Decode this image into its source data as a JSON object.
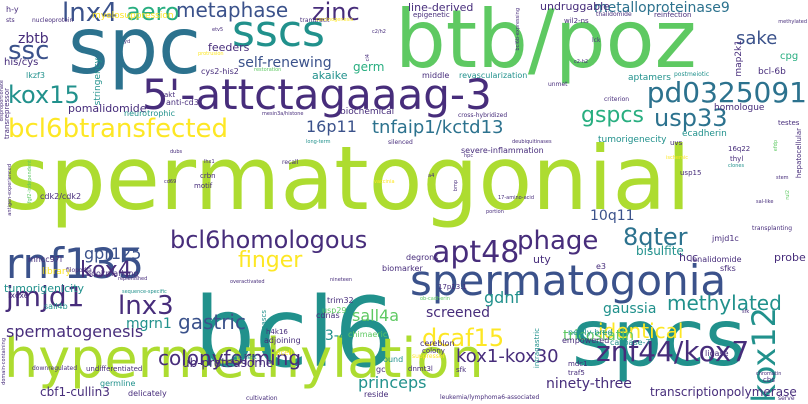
{
  "colors": {
    "purple": "#440154",
    "indigo": "#472d7b",
    "slate": "#3b528b",
    "blue": "#2c728e",
    "teal": "#21918c",
    "sea": "#28ae80",
    "green": "#5ec962",
    "lime": "#addc30",
    "yellow": "#fde725",
    "background": "#ffffff"
  },
  "words": [
    {
      "text": "spermatogonial",
      "color": "lime",
      "big": 96
    },
    {
      "text": "bcl6",
      "color": "teal",
      "big": 90
    },
    {
      "text": "btb/poz",
      "color": "green",
      "big": 76
    },
    {
      "text": "spc",
      "color": "blue",
      "big": 64
    },
    {
      "text": "spcs",
      "color": "teal",
      "big": 64
    },
    {
      "text": "hypermethylation",
      "color": "lime",
      "big": 50
    },
    {
      "text": "spermatogonia",
      "color": "slate",
      "big": 40
    },
    {
      "text": "5'-attctagaaag-3",
      "color": "indigo",
      "big": 40
    },
    {
      "text": "sscs",
      "color": "teal",
      "big": 40
    },
    {
      "text": "rnf135",
      "color": "slate",
      "big": 34
    },
    {
      "text": "kox12",
      "color": "teal",
      "big": 30
    },
    {
      "text": "apt48",
      "color": "indigo",
      "big": 28
    },
    {
      "text": "znf44/kox7",
      "color": "indigo",
      "big": 26
    },
    {
      "text": "pd0325091",
      "color": "blue",
      "big": 26
    },
    {
      "text": "jmjd1",
      "color": "indigo",
      "big": 26
    },
    {
      "text": "bcl6btransfected",
      "color": "yellow",
      "big": 24
    },
    {
      "text": "lnx3",
      "color": "indigo",
      "big": 24
    },
    {
      "text": "ssc",
      "color": "slate",
      "big": 24
    },
    {
      "text": "lnx4",
      "color": "slate",
      "big": 24
    },
    {
      "text": "zinc",
      "color": "indigo",
      "big": 24
    },
    {
      "text": "phage",
      "color": "indigo",
      "big": 22
    },
    {
      "text": "dcaf15",
      "color": "yellow",
      "big": 22
    },
    {
      "text": "usp33",
      "color": "blue",
      "big": 22
    },
    {
      "text": "bcl6homologous",
      "color": "indigo",
      "big": 22
    },
    {
      "text": "metaphase",
      "color": "slate",
      "big": 22
    },
    {
      "text": "aero",
      "color": "sea",
      "big": 22
    },
    {
      "text": "kox15",
      "color": "teal",
      "big": 22
    },
    {
      "text": "finger",
      "color": "yellow",
      "big": 20
    },
    {
      "text": "gspcs",
      "color": "sea",
      "big": 20
    },
    {
      "text": "8qter",
      "color": "blue",
      "big": 20
    },
    {
      "text": "kox4",
      "color": "indigo",
      "big": 20
    },
    {
      "text": "gastric",
      "color": "slate",
      "big": 18
    },
    {
      "text": "methylated",
      "color": "teal",
      "big": 18
    },
    {
      "text": "identical",
      "color": "yellow",
      "big": 18
    },
    {
      "text": "colonyforming",
      "color": "indigo",
      "big": 18
    },
    {
      "text": "tnfaip1/kctd13",
      "color": "blue",
      "big": 18
    },
    {
      "text": "kox1-kox30",
      "color": "indigo",
      "big": 16
    },
    {
      "text": "sake",
      "color": "slate",
      "big": 16
    },
    {
      "text": "gpr125",
      "color": "slate",
      "big": 16
    },
    {
      "text": "16p11",
      "color": "slate",
      "big": 14
    },
    {
      "text": "spermatogenesis",
      "color": "indigo",
      "big": 14
    },
    {
      "text": "gdnf",
      "color": "teal",
      "big": 14
    },
    {
      "text": "zbtb",
      "color": "indigo",
      "big": 14
    },
    {
      "text": "metalloproteinase9",
      "color": "blue",
      "big": 14
    },
    {
      "text": "sall4a",
      "color": "green",
      "big": 14
    },
    {
      "text": "mgrn1",
      "color": "teal",
      "big": 14
    },
    {
      "text": "n3-4",
      "color": "teal",
      "big": 14
    },
    {
      "text": "princeps",
      "color": "teal",
      "big": 14
    },
    {
      "text": "tricostatin",
      "color": "green",
      "big": 14
    },
    {
      "text": "screened",
      "color": "indigo",
      "big": 12
    },
    {
      "text": "gaussia",
      "color": "teal",
      "big": 12
    },
    {
      "text": "10q11",
      "color": "slate",
      "big": 12
    },
    {
      "text": "self-renewing",
      "color": "slate",
      "big": 12
    },
    {
      "text": "ninety-three",
      "color": "indigo",
      "big": 12
    },
    {
      "text": "transcriptionpolymerase",
      "color": "indigo",
      "big": 12
    },
    {
      "text": "ub-proteasome",
      "color": "indigo",
      "big": 11
    },
    {
      "text": "cbf1-cullin3",
      "color": "indigo",
      "big": 11
    },
    {
      "text": "bisulfite",
      "color": "teal",
      "big": 11
    },
    {
      "text": "germ",
      "color": "sea",
      "big": 11
    },
    {
      "text": "akaike",
      "color": "teal",
      "big": 10
    },
    {
      "text": "feeders",
      "color": "indigo",
      "big": 10
    },
    {
      "text": "tumorigenicity",
      "color": "teal",
      "big": 10
    },
    {
      "text": "uty",
      "color": "indigo",
      "big": 10
    },
    {
      "text": "hcc",
      "color": "indigo",
      "big": 10
    },
    {
      "text": "probe",
      "color": "indigo",
      "big": 10
    },
    {
      "text": "pomalidomide",
      "color": "indigo",
      "big": 10
    },
    {
      "text": "undruggable",
      "color": "indigo",
      "big": 10
    },
    {
      "text": "line-derived",
      "color": "indigo",
      "big": 10
    },
    {
      "text": "myelosuppression",
      "color": "yellow",
      "big": 10
    },
    {
      "text": "his/cys",
      "color": "indigo",
      "big": 10
    },
    {
      "text": "stringency",
      "color": "teal",
      "big": 10
    },
    {
      "text": "lkzf3",
      "color": "teal",
      "big": 8
    },
    {
      "text": "cpg",
      "color": "sea",
      "big": 9
    },
    {
      "text": "map2k1",
      "color": "indigo",
      "big": 9
    },
    {
      "text": "bcl-6b",
      "color": "indigo",
      "big": 9
    },
    {
      "text": "homologue",
      "color": "indigo",
      "big": 9
    },
    {
      "text": "ecadherin",
      "color": "teal",
      "big": 9
    },
    {
      "text": "tumorigenecity",
      "color": "teal",
      "big": 9
    },
    {
      "text": "aptamers",
      "color": "teal",
      "big": 9
    },
    {
      "text": "biochemical",
      "color": "indigo",
      "big": 9
    },
    {
      "text": "middle",
      "color": "indigo",
      "big": 8
    },
    {
      "text": "revascularization",
      "color": "teal",
      "big": 8
    },
    {
      "text": "severe-inflammation",
      "color": "indigo",
      "big": 8
    },
    {
      "text": "neurotrophic",
      "color": "teal",
      "big": 8
    },
    {
      "text": "anti-cd3",
      "color": "indigo",
      "big": 8
    },
    {
      "text": "cys2-his2",
      "color": "indigo",
      "big": 8
    },
    {
      "text": "bookmarking",
      "color": "indigo",
      "big": 8
    },
    {
      "text": "library",
      "color": "yellow",
      "big": 9
    },
    {
      "text": "lxcxe",
      "color": "indigo",
      "big": 8
    },
    {
      "text": "sall4b",
      "color": "teal",
      "big": 8
    },
    {
      "text": "mhcc97l",
      "color": "indigo",
      "big": 8
    },
    {
      "text": "cdk2/cdk2",
      "color": "indigo",
      "big": 8
    },
    {
      "text": "biomarker",
      "color": "indigo",
      "big": 8
    },
    {
      "text": "degrons",
      "color": "indigo",
      "big": 8
    },
    {
      "text": "17p13.1",
      "color": "indigo",
      "big": 7
    },
    {
      "text": "trim32",
      "color": "indigo",
      "big": 8
    },
    {
      "text": "usp29",
      "color": "green",
      "big": 8
    },
    {
      "text": "lenalidomide",
      "color": "indigo",
      "big": 8
    },
    {
      "text": "jmjd1c",
      "color": "indigo",
      "big": 8
    },
    {
      "text": "sfks",
      "color": "indigo",
      "big": 8
    },
    {
      "text": "e3",
      "color": "indigo",
      "big": 8
    },
    {
      "text": "adjoining",
      "color": "indigo",
      "big": 8
    },
    {
      "text": "h4k16",
      "color": "indigo",
      "big": 7
    },
    {
      "text": "cdnas",
      "color": "indigo",
      "big": 8
    },
    {
      "text": "chimaeric",
      "color": "green",
      "big": 8
    },
    {
      "text": "cereblon",
      "color": "indigo",
      "big": 8
    },
    {
      "text": "colony",
      "color": "indigo",
      "big": 7
    },
    {
      "text": "caspase-7",
      "color": "teal",
      "big": 8
    },
    {
      "text": "empowered",
      "color": "indigo",
      "big": 8
    },
    {
      "text": "newly-bred",
      "color": "teal",
      "big": 8
    },
    {
      "text": "ligase",
      "color": "indigo",
      "big": 8
    },
    {
      "text": "cbs",
      "color": "indigo",
      "big": 7
    },
    {
      "text": "germline",
      "color": "teal",
      "big": 8
    },
    {
      "text": "delicately",
      "color": "indigo",
      "big": 8
    },
    {
      "text": "undifferentiated",
      "color": "indigo",
      "big": 7
    },
    {
      "text": "downregulated",
      "color": "indigo",
      "big": 6
    },
    {
      "text": "shortest",
      "color": "teal",
      "big": 6
    },
    {
      "text": "bcell",
      "color": "yellow",
      "big": 7
    },
    {
      "text": "bound",
      "color": "teal",
      "big": 8
    },
    {
      "text": "suppressor",
      "color": "yellow",
      "big": 6
    },
    {
      "text": "sfk",
      "color": "indigo",
      "big": 7
    },
    {
      "text": "mdc1",
      "color": "indigo",
      "big": 7
    },
    {
      "text": "traf5",
      "color": "indigo",
      "big": 7
    },
    {
      "text": "reside",
      "color": "indigo",
      "big": 8
    },
    {
      "text": "cultivation",
      "color": "indigo",
      "big": 6
    },
    {
      "text": "leukemia/lymphoma6-associated",
      "color": "indigo",
      "big": 6
    },
    {
      "text": "serve",
      "color": "indigo",
      "big": 6
    },
    {
      "text": "intragastric",
      "color": "teal",
      "big": 7
    },
    {
      "text": "gc",
      "color": "indigo",
      "big": 8
    },
    {
      "text": "dnmt3l",
      "color": "indigo",
      "big": 7
    },
    {
      "text": "mascs",
      "color": "teal",
      "big": 7
    },
    {
      "text": "usp15",
      "color": "indigo",
      "big": 7
    },
    {
      "text": "uvs",
      "color": "indigo",
      "big": 7
    },
    {
      "text": "16q22",
      "color": "indigo",
      "big": 7
    },
    {
      "text": "thyl",
      "color": "indigo",
      "big": 7
    },
    {
      "text": "testes",
      "color": "indigo",
      "big": 7
    },
    {
      "text": "hepatocellular",
      "color": "indigo",
      "big": 7
    },
    {
      "text": "h-y",
      "color": "indigo",
      "big": 7
    },
    {
      "text": "sts",
      "color": "indigo",
      "big": 6
    },
    {
      "text": "nucleoprotein",
      "color": "indigo",
      "big": 6
    },
    {
      "text": "tramtrack",
      "color": "indigo",
      "big": 6
    },
    {
      "text": "wil2-ns",
      "color": "indigo",
      "big": 7
    },
    {
      "text": "lck",
      "color": "indigo",
      "big": 6
    },
    {
      "text": "thalidomide",
      "color": "indigo",
      "big": 6
    },
    {
      "text": "reinfection",
      "color": "indigo",
      "big": 7
    },
    {
      "text": "postmeiotic",
      "color": "teal",
      "big": 6
    },
    {
      "text": "criterion",
      "color": "indigo",
      "big": 6
    },
    {
      "text": "epigenetic",
      "color": "indigo",
      "big": 7
    },
    {
      "text": "cross-hybridized",
      "color": "indigo",
      "big": 6
    },
    {
      "text": "silenced",
      "color": "indigo",
      "big": 6
    },
    {
      "text": "akt",
      "color": "indigo",
      "big": 7
    },
    {
      "text": "crbn",
      "color": "indigo",
      "big": 7
    },
    {
      "text": "motif",
      "color": "indigo",
      "big": 7
    },
    {
      "text": "recall",
      "color": "indigo",
      "big": 6
    },
    {
      "text": "long-term",
      "color": "teal",
      "big": 5
    },
    {
      "text": "dubs",
      "color": "indigo",
      "big": 5
    },
    {
      "text": "lhx1",
      "color": "indigo",
      "big": 5
    },
    {
      "text": "cd69",
      "color": "indigo",
      "big": 5
    },
    {
      "text": "fgf2-independent",
      "color": "green",
      "big": 5
    },
    {
      "text": "antigen-experienced",
      "color": "indigo",
      "big": 5
    },
    {
      "text": "filopodia",
      "color": "indigo",
      "big": 6
    },
    {
      "text": "replenished",
      "color": "indigo",
      "big": 5
    },
    {
      "text": "sequence-specific",
      "color": "teal",
      "big": 5
    },
    {
      "text": "overactivated",
      "color": "indigo",
      "big": 5
    },
    {
      "text": "nineteen",
      "color": "indigo",
      "big": 5
    },
    {
      "text": "17-amino-acid",
      "color": "indigo",
      "big": 5
    },
    {
      "text": "portion",
      "color": "indigo",
      "big": 5
    },
    {
      "text": "bmp",
      "color": "indigo",
      "big": 5
    },
    {
      "text": "vaccinia",
      "color": "yellow",
      "big": 5
    },
    {
      "text": "a4",
      "color": "indigo",
      "big": 5
    },
    {
      "text": "ob-cadherin",
      "color": "green",
      "big": 5
    },
    {
      "text": "transplanting",
      "color": "indigo",
      "big": 6
    },
    {
      "text": "sal-like",
      "color": "indigo",
      "big": 5
    },
    {
      "text": "stem",
      "color": "indigo",
      "big": 5
    },
    {
      "text": "clones",
      "color": "teal",
      "big": 5
    },
    {
      "text": "efdp",
      "color": "green",
      "big": 5
    },
    {
      "text": "rul2",
      "color": "green",
      "big": 5
    },
    {
      "text": "ischemic",
      "color": "yellow",
      "big": 5
    },
    {
      "text": "deubiquitinases",
      "color": "indigo",
      "big": 5
    },
    {
      "text": "hpc",
      "color": "indigo",
      "big": 5
    },
    {
      "text": "mesin3a/histone",
      "color": "indigo",
      "big": 5
    },
    {
      "text": "carcinogenesis",
      "color": "yellow",
      "big": 5
    },
    {
      "text": "restoration",
      "color": "green",
      "big": 5
    },
    {
      "text": "etv5",
      "color": "indigo",
      "big": 5
    },
    {
      "text": "protrusion",
      "color": "yellow",
      "big": 5
    },
    {
      "text": "c2-h2",
      "color": "indigo",
      "big": 5
    },
    {
      "text": "c2/h2",
      "color": "indigo",
      "big": 5
    },
    {
      "text": "cl4",
      "color": "indigo",
      "big": 5
    },
    {
      "text": "yd",
      "color": "indigo",
      "big": 5
    },
    {
      "text": "unmet",
      "color": "indigo",
      "big": 6
    },
    {
      "text": "bcl6b-expressing",
      "color": "indigo",
      "big": 5
    },
    {
      "text": "disproportionate",
      "color": "indigo",
      "big": 5
    },
    {
      "text": "transrepressor",
      "color": "indigo",
      "big": 7
    },
    {
      "text": "chromatin",
      "color": "indigo",
      "big": 5
    },
    {
      "text": "sfk",
      "color": "indigo",
      "big": 5
    },
    {
      "text": "domain-containing",
      "color": "indigo",
      "big": 5
    },
    {
      "text": "methylated",
      "color": "indigo",
      "big": 5
    }
  ]
}
